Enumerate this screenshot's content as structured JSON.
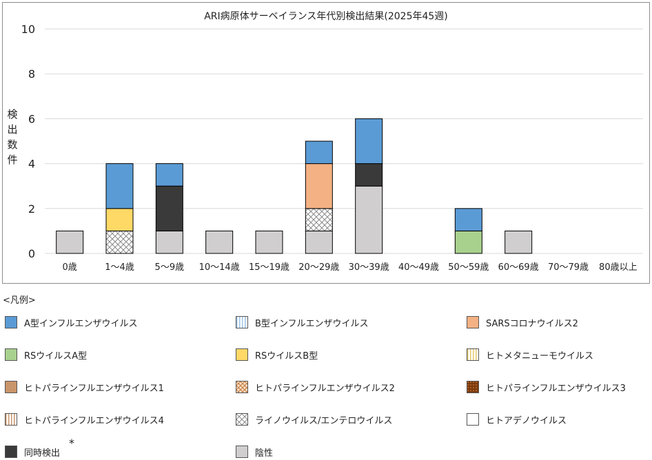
{
  "chart_data": {
    "type": "stacked-bar",
    "title": "ARI病原体サーベイランス年代別検出結果(2025年45週)",
    "ylabel": "検出数件",
    "ylabel_chars": [
      "検",
      "出",
      "数",
      "件"
    ],
    "ylim": [
      0,
      10
    ],
    "yticks": [
      0,
      2,
      4,
      6,
      8,
      10
    ],
    "grid": true,
    "categories": [
      "0歳",
      "1～4歳",
      "5～9歳",
      "10～14歳",
      "15～19歳",
      "20～29歳",
      "30～39歳",
      "40～49歳",
      "50～59歳",
      "60～69歳",
      "70～79歳",
      "80歳以上"
    ],
    "series": [
      {
        "name": "陰性",
        "key": "negative",
        "values": [
          1,
          0,
          1,
          1,
          1,
          1,
          3,
          0,
          0,
          1,
          0,
          0
        ]
      },
      {
        "name": "ライノウイルス/エンテロウイルス",
        "key": "rhino",
        "values": [
          0,
          1,
          0,
          0,
          0,
          1,
          0,
          0,
          0,
          0,
          0,
          0
        ]
      },
      {
        "name": "SARSコロナウイルス2",
        "key": "sars",
        "values": [
          0,
          0,
          0,
          0,
          0,
          2,
          0,
          0,
          0,
          0,
          0,
          0
        ]
      },
      {
        "name": "RSウイルスA型",
        "key": "rsa",
        "values": [
          0,
          0,
          0,
          0,
          0,
          0,
          0,
          0,
          1,
          0,
          0,
          0
        ]
      },
      {
        "name": "RSウイルスB型",
        "key": "rsb",
        "values": [
          0,
          1,
          0,
          0,
          0,
          0,
          0,
          0,
          0,
          0,
          0,
          0
        ]
      },
      {
        "name": "同時検出",
        "key": "codetect",
        "values": [
          0,
          0,
          2,
          0,
          0,
          0,
          1,
          0,
          0,
          0,
          0,
          0
        ]
      },
      {
        "name": "A型インフルエンザウイルス",
        "key": "fluA",
        "values": [
          0,
          2,
          1,
          0,
          0,
          1,
          2,
          0,
          1,
          0,
          0,
          0
        ]
      }
    ]
  },
  "legend": {
    "heading": "<凡例>",
    "asterisk": "*",
    "items": [
      {
        "label": "A型インフルエンザウイルス",
        "fill": "fluA"
      },
      {
        "label": "B型インフルエンザウイルス",
        "fill": "fluB"
      },
      {
        "label": "SARSコロナウイルス2",
        "fill": "sars"
      },
      {
        "label": "RSウイルスA型",
        "fill": "rsa"
      },
      {
        "label": "RSウイルスB型",
        "fill": "rsb"
      },
      {
        "label": "ヒトメタニューモウイルス",
        "fill": "hmpv"
      },
      {
        "label": "ヒトパラインフルエンザウイルス1",
        "fill": "piv1"
      },
      {
        "label": "ヒトパラインフルエンザウイルス2",
        "fill": "piv2"
      },
      {
        "label": "ヒトパラインフルエンザウイルス3",
        "fill": "piv3"
      },
      {
        "label": "ヒトパラインフルエンザウイルス4",
        "fill": "piv4"
      },
      {
        "label": "ライノウイルス/エンテロウイルス",
        "fill": "rhino"
      },
      {
        "label": "ヒトアデノウイルス",
        "fill": "adeno"
      },
      {
        "label": "同時検出",
        "fill": "codetect"
      },
      {
        "label": "陰性",
        "fill": "negative"
      }
    ]
  },
  "colors": {
    "fluA": "#5b9bd5",
    "fluB": "#ddebf7",
    "sars": "#f4b183",
    "rsa": "#a9d18e",
    "rsb": "#ffd966",
    "hmpv": "#fff2cc",
    "piv1": "#c9956a",
    "piv2": "#f8cbad",
    "piv3": "#843c0c",
    "piv4": "#ffffff",
    "rhino": "#ffffff",
    "adeno": "#ffffff",
    "codetect": "#3a3a3a",
    "negative": "#d0cece",
    "grid": "#d9d9d9",
    "bar_stroke": "#000000"
  }
}
